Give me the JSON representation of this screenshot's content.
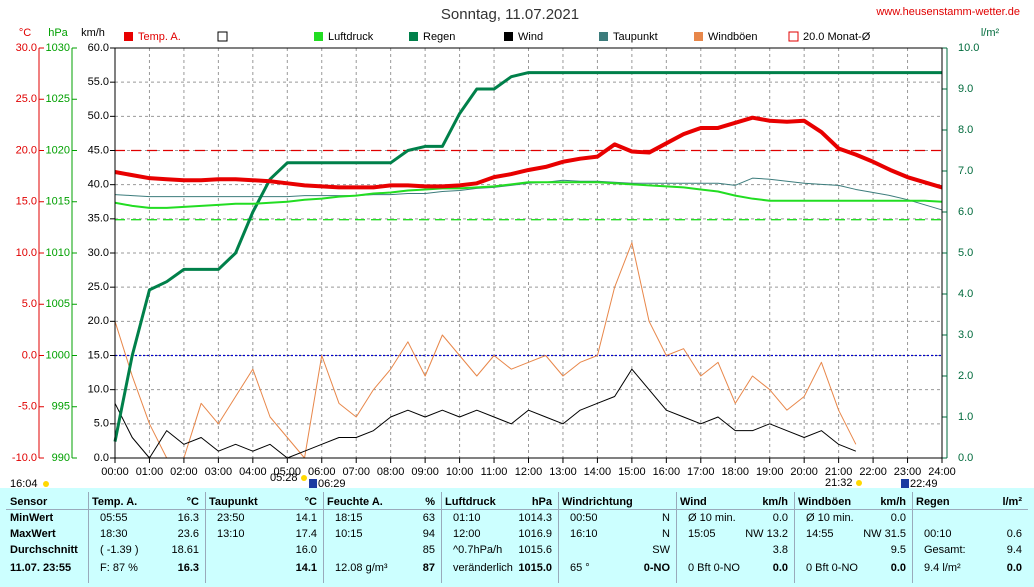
{
  "chart_data": {
    "type": "line",
    "title": "Sonntag, 11.07.2021",
    "site": "www.heusenstamm-wetter.de",
    "units": {
      "temp": "°C",
      "hpa": "hPa",
      "y": "km/h",
      "y2": "l/m²"
    },
    "x": [
      0,
      0.5,
      1,
      1.5,
      2,
      2.5,
      3,
      3.5,
      4,
      4.5,
      5,
      5.5,
      6,
      6.5,
      7,
      7.5,
      8,
      8.5,
      9,
      9.5,
      10,
      10.5,
      11,
      11.5,
      12,
      12.5,
      13,
      13.5,
      14,
      14.5,
      15,
      15.5,
      16,
      16.5,
      17,
      17.5,
      18,
      18.5,
      19,
      19.5,
      20,
      20.5,
      21,
      21.5,
      22,
      22.5,
      23,
      23.5,
      24
    ],
    "xlim": [
      0,
      24
    ],
    "xticks": [
      {
        "value": 0,
        "label": "00:00"
      },
      {
        "value": 1,
        "label": "01:00"
      },
      {
        "value": 2,
        "label": "02:00"
      },
      {
        "value": 3,
        "label": "03:00"
      },
      {
        "value": 4,
        "label": "04:00"
      },
      {
        "value": 5,
        "label": "05:00"
      },
      {
        "value": 6,
        "label": "06:00"
      },
      {
        "value": 7,
        "label": "07:00"
      },
      {
        "value": 8,
        "label": "08:00"
      },
      {
        "value": 9,
        "label": "09:00"
      },
      {
        "value": 10,
        "label": "10:00"
      },
      {
        "value": 11,
        "label": "11:00"
      },
      {
        "value": 12,
        "label": "12:00"
      },
      {
        "value": 13,
        "label": "13:00"
      },
      {
        "value": 14,
        "label": "14:00"
      },
      {
        "value": 15,
        "label": "15:00"
      },
      {
        "value": 16,
        "label": "16:00"
      },
      {
        "value": 17,
        "label": "17:00"
      },
      {
        "value": 18,
        "label": "18:00"
      },
      {
        "value": 19,
        "label": "19:00"
      },
      {
        "value": 20,
        "label": "20:00"
      },
      {
        "value": 21,
        "label": "21:00"
      },
      {
        "value": 22,
        "label": "22:00"
      },
      {
        "value": 23,
        "label": "23:00"
      },
      {
        "value": 24,
        "label": "24:00"
      }
    ],
    "ylim": [
      0,
      60
    ],
    "yticks": [
      {
        "value": 0,
        "label": "0.0"
      },
      {
        "value": 5,
        "label": "5.0"
      },
      {
        "value": 10,
        "label": "10.0"
      },
      {
        "value": 15,
        "label": "15.0"
      },
      {
        "value": 20,
        "label": "20.0"
      },
      {
        "value": 25,
        "label": "25.0"
      },
      {
        "value": 30,
        "label": "30.0"
      },
      {
        "value": 35,
        "label": "35.0"
      },
      {
        "value": 40,
        "label": "40.0"
      },
      {
        "value": 45,
        "label": "45.0"
      },
      {
        "value": 50,
        "label": "50.0"
      },
      {
        "value": 55,
        "label": "55.0"
      },
      {
        "value": 60,
        "label": "60.0"
      }
    ],
    "temp_lim": [
      -10,
      30
    ],
    "temp_ticks": [
      {
        "value": 30,
        "label": "30.0"
      },
      {
        "value": 25,
        "label": "25.0"
      },
      {
        "value": 20,
        "label": "20.0"
      },
      {
        "value": 15,
        "label": "15.0"
      },
      {
        "value": 10,
        "label": "10.0"
      },
      {
        "value": 5,
        "label": "5.0"
      },
      {
        "value": 0,
        "label": "0.0"
      },
      {
        "value": -5,
        "label": "-5.0"
      },
      {
        "value": -10,
        "label": "-10.0"
      }
    ],
    "hpa_lim": [
      990,
      1030
    ],
    "hpa_ticks": [
      1030,
      1025,
      1020,
      1015,
      1010,
      1005,
      1000,
      995,
      990
    ],
    "y2lim": [
      0,
      10
    ],
    "y2ticks": [
      {
        "value": 0,
        "label": "0.0"
      },
      {
        "value": 1,
        "label": "1.0"
      },
      {
        "value": 2,
        "label": "2.0"
      },
      {
        "value": 3,
        "label": "3.0"
      },
      {
        "value": 4,
        "label": "4.0"
      },
      {
        "value": 5,
        "label": "5.0"
      },
      {
        "value": 6,
        "label": "6.0"
      },
      {
        "value": 7,
        "label": "7.0"
      },
      {
        "value": 8,
        "label": "8.0"
      },
      {
        "value": 9,
        "label": "9.0"
      },
      {
        "value": 10,
        "label": "10.0"
      }
    ],
    "grid": true,
    "series": [
      {
        "name": "Temp. A.",
        "color": "#e80000",
        "axis": "temp",
        "width": 4,
        "values": [
          17.9,
          17.6,
          17.3,
          17.2,
          17.1,
          17.1,
          17.2,
          17.2,
          17.1,
          17.0,
          16.8,
          16.6,
          16.5,
          16.4,
          16.4,
          16.4,
          16.6,
          16.6,
          16.5,
          16.5,
          16.6,
          16.8,
          17.4,
          17.7,
          18.1,
          18.4,
          18.9,
          19.2,
          19.4,
          20.6,
          19.9,
          19.8,
          20.7,
          21.6,
          22.2,
          22.2,
          22.7,
          23.2,
          22.9,
          22.8,
          22.9,
          21.8,
          20.2,
          19.6,
          18.9,
          18.1,
          17.4,
          16.9,
          16.4
        ]
      },
      {
        "name": "Luftdruck",
        "color": "#22dd22",
        "axis": "hpa",
        "width": 2,
        "values": [
          1014.9,
          1014.6,
          1014.4,
          1014.4,
          1014.5,
          1014.6,
          1014.7,
          1014.8,
          1014.8,
          1014.9,
          1015.0,
          1015.2,
          1015.3,
          1015.5,
          1015.6,
          1015.8,
          1015.9,
          1016.1,
          1016.2,
          1016.3,
          1016.3,
          1016.4,
          1016.5,
          1016.7,
          1016.9,
          1016.9,
          1016.9,
          1016.9,
          1016.9,
          1016.8,
          1016.7,
          1016.6,
          1016.5,
          1016.4,
          1016.2,
          1016.0,
          1015.6,
          1015.3,
          1015.1,
          1015.1,
          1015.1,
          1015.1,
          1015.1,
          1015.1,
          1015.1,
          1015.1,
          1015.1,
          1015.1,
          1015.0
        ]
      },
      {
        "name": "Regen",
        "color": "#00804a",
        "axis": "y2",
        "width": 3,
        "values": [
          0.4,
          2.5,
          4.1,
          4.3,
          4.6,
          4.6,
          4.6,
          5.0,
          6.0,
          6.8,
          7.2,
          7.2,
          7.2,
          7.2,
          7.2,
          7.2,
          7.2,
          7.5,
          7.6,
          7.6,
          8.4,
          9.0,
          9.0,
          9.3,
          9.4,
          9.4,
          9.4,
          9.4,
          9.4,
          9.4,
          9.4,
          9.4,
          9.4,
          9.4,
          9.4,
          9.4,
          9.4,
          9.4,
          9.4,
          9.4,
          9.4,
          9.4,
          9.4,
          9.4,
          9.4,
          9.4,
          9.4,
          9.4,
          9.4
        ]
      },
      {
        "name": "Wind",
        "color": "#000000",
        "axis": "y",
        "width": 1,
        "values": [
          8,
          3,
          0,
          4,
          2,
          3,
          1,
          2,
          1,
          2,
          0,
          1,
          2,
          3,
          3,
          4,
          6,
          7,
          6,
          7,
          6,
          7,
          6,
          5,
          7,
          6,
          5,
          7,
          8,
          9,
          13,
          10,
          7,
          6,
          5,
          6,
          4,
          4,
          5,
          4,
          3,
          4,
          2,
          1,
          null,
          null,
          null,
          null,
          null
        ]
      },
      {
        "name": "Taupunkt",
        "color": "#3c7c7c",
        "axis": "temp",
        "width": 1,
        "values": [
          15.7,
          15.6,
          15.5,
          15.5,
          15.5,
          15.5,
          15.5,
          15.5,
          15.5,
          15.5,
          15.5,
          15.6,
          15.6,
          15.6,
          15.6,
          15.7,
          15.7,
          15.8,
          15.8,
          16.0,
          16.1,
          16.3,
          16.4,
          16.6,
          16.8,
          16.9,
          17.1,
          17.0,
          17.0,
          16.9,
          16.8,
          16.8,
          16.8,
          16.8,
          16.8,
          16.8,
          16.6,
          17.3,
          17.2,
          17.0,
          16.8,
          16.7,
          16.6,
          16.2,
          15.9,
          15.6,
          15.2,
          14.7,
          14.2
        ]
      },
      {
        "name": "Windböen",
        "color": "#e8874a",
        "axis": "y",
        "width": 1,
        "values": [
          20,
          12,
          5,
          0,
          0,
          8,
          5,
          9,
          13,
          6,
          3,
          0,
          15,
          8,
          6,
          10,
          13,
          17,
          12,
          18,
          15,
          12,
          15,
          13,
          14,
          15,
          12,
          14,
          15,
          25,
          31.5,
          20,
          15,
          16,
          12,
          14,
          8,
          12,
          10,
          7,
          9,
          14,
          7,
          2,
          null,
          null,
          null,
          null,
          null
        ]
      }
    ],
    "reference_lines": [
      {
        "name": "20.0 Monat-Ø",
        "axis": "temp",
        "value": 20,
        "color": "#e00000",
        "dash": "10 6"
      },
      {
        "axis": "hpa",
        "value": 1013.25,
        "color": "#22dd22",
        "dash": "10 6"
      },
      {
        "axis": "temp",
        "value": 0,
        "color": "#0000cc",
        "dash": "2 2"
      }
    ],
    "events": [
      "16:04",
      "05:28",
      "06:29",
      "21:32",
      "22:49"
    ]
  },
  "table": {
    "columns": [
      {
        "title": "Sensor",
        "rows": [
          [
            "MinWert"
          ],
          [
            "MaxWert"
          ],
          [
            "Durchschnitt"
          ],
          [
            "11.07. 23:55"
          ]
        ]
      },
      {
        "title": "Temp. A.",
        "unit": "°C",
        "rows": [
          [
            "05:55",
            "16.3"
          ],
          [
            "18:30",
            "23.6"
          ],
          [
            "( -1.39 )",
            "18.61"
          ],
          [
            "F: 87 %",
            "16.3"
          ]
        ]
      },
      {
        "title": "Taupunkt",
        "unit": "°C",
        "rows": [
          [
            "23:50",
            "14.1"
          ],
          [
            "13:10",
            "17.4"
          ],
          [
            "16.0"
          ],
          [
            "14.1"
          ]
        ]
      },
      {
        "title": "Feuchte A.",
        "unit": "%",
        "rows": [
          [
            "18:15",
            "63"
          ],
          [
            "10:15",
            "94"
          ],
          [
            "85"
          ],
          [
            "12.08 g/m³",
            "87"
          ]
        ]
      },
      {
        "title": "Luftdruck",
        "unit": "hPa",
        "rows": [
          [
            "01:10",
            "1014.3"
          ],
          [
            "12:00",
            "1016.9"
          ],
          [
            "^0.7hPa/h",
            "1015.6"
          ],
          [
            "veränderlich",
            "1015.0"
          ]
        ]
      },
      {
        "title": "Windrichtung",
        "rows": [
          [
            "00:50",
            "N"
          ],
          [
            "16:10",
            "N"
          ],
          [
            "SW"
          ],
          [
            "65 °",
            "0-NO"
          ]
        ]
      },
      {
        "title": "Wind",
        "unit": "km/h",
        "rows": [
          [
            "Ø 10 min.",
            "0.0"
          ],
          [
            "15:05",
            "NW 13.2"
          ],
          [
            "3.8"
          ],
          [
            "0 Bft 0-NO",
            "0.0"
          ]
        ]
      },
      {
        "title": "Windböen",
        "unit": "km/h",
        "rows": [
          [
            "Ø 10 min.",
            "0.0"
          ],
          [
            "14:55",
            "NW 31.5"
          ],
          [
            "9.5"
          ],
          [
            "0 Bft 0-NO",
            "0.0"
          ]
        ]
      },
      {
        "title": "Regen",
        "unit": "l/m²",
        "rows": [
          [],
          [
            "00:10",
            "0.6"
          ],
          [
            "Gesamt:",
            "9.4"
          ],
          [
            "9.4 l/m²",
            "0.0"
          ]
        ]
      }
    ]
  }
}
